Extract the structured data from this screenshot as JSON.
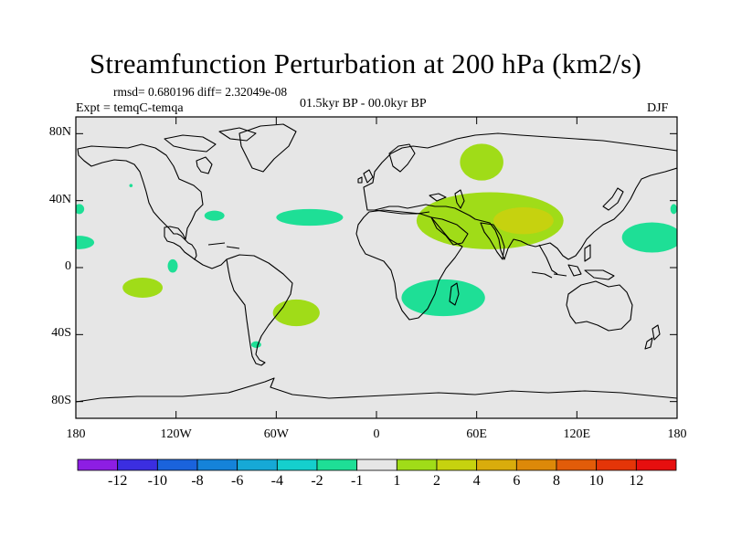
{
  "title": "Streamfunction Perturbation at 200 hPa (km2/s)",
  "stats": "rmsd= 0.680196 diff= 2.32049e-08",
  "period": "01.5kyr BP - 00.0kyr BP",
  "experiment": "Expt = temqC-temqa",
  "season": "DJF",
  "map": {
    "projection": "cylindrical equidistant",
    "lon_range": [
      -180,
      180
    ],
    "lat_range": [
      -90,
      90
    ],
    "background_color": "#e6e6e6",
    "y_ticks": [
      {
        "label": "80N",
        "lat": 80
      },
      {
        "label": "40N",
        "lat": 40
      },
      {
        "label": "0",
        "lat": 0
      },
      {
        "label": "40S",
        "lat": -40
      },
      {
        "label": "80S",
        "lat": -80
      }
    ],
    "x_ticks": [
      {
        "label": "180",
        "lon": -180
      },
      {
        "label": "120W",
        "lon": -120
      },
      {
        "label": "60W",
        "lon": -60
      },
      {
        "label": "0",
        "lon": 0
      },
      {
        "label": "60E",
        "lon": 60
      },
      {
        "label": "120E",
        "lon": 120
      },
      {
        "label": "180",
        "lon": 180
      }
    ],
    "anomalies": [
      {
        "name": "central-asia-positive",
        "lon": 63,
        "lat": 63,
        "rlon": 13,
        "rlat": 11,
        "level": 1
      },
      {
        "name": "south-asia-positive",
        "lon": 68,
        "lat": 28,
        "rlon": 44,
        "rlat": 17,
        "level": 1
      },
      {
        "name": "tibet-core-positive",
        "lon": 88,
        "lat": 28,
        "rlon": 18,
        "rlat": 8,
        "level": 2
      },
      {
        "name": "south-atlantic-positive",
        "lon": -48,
        "lat": -27,
        "rlon": 14,
        "rlat": 8,
        "level": 1
      },
      {
        "name": "south-pacific-positive",
        "lon": -140,
        "lat": -12,
        "rlon": 12,
        "rlat": 6,
        "level": 1
      },
      {
        "name": "north-atlantic-negative",
        "lon": -40,
        "lat": 30,
        "rlon": 20,
        "rlat": 5,
        "level": -1
      },
      {
        "name": "indian-ocean-negative",
        "lon": 40,
        "lat": -18,
        "rlon": 25,
        "rlat": 11,
        "level": -1
      },
      {
        "name": "west-pacific-negative",
        "lon": 165,
        "lat": 18,
        "rlon": 18,
        "rlat": 9,
        "level": -1
      },
      {
        "name": "east-pacific-negative",
        "lon": -178,
        "lat": 15,
        "rlon": 9,
        "rlat": 4,
        "level": -1
      },
      {
        "name": "gulf-of-mexico-negative",
        "lon": -97,
        "lat": 31,
        "rlon": 6,
        "rlat": 3,
        "level": -1
      },
      {
        "name": "equatorial-pacific-negative",
        "lon": -122,
        "lat": 1,
        "rlon": 3,
        "rlat": 4,
        "level": -1
      },
      {
        "name": "southwest-atlantic-negative",
        "lon": -72,
        "lat": -46,
        "rlon": 3,
        "rlat": 2,
        "level": -1
      },
      {
        "name": "dateline-north-negative",
        "lon": -178,
        "lat": 35,
        "rlon": 3,
        "rlat": 3,
        "level": -1
      },
      {
        "name": "dateline-east-negative",
        "lon": 178,
        "lat": 35,
        "rlon": 2,
        "rlat": 3,
        "level": -1
      },
      {
        "name": "north-pacific-negative",
        "lon": -147,
        "lat": 49,
        "rlon": 1,
        "rlat": 1,
        "level": -1
      }
    ]
  },
  "colorbar": {
    "labels": [
      "-12",
      "-10",
      "-8",
      "-6",
      "-4",
      "-2",
      "-1",
      "1",
      "2",
      "4",
      "6",
      "8",
      "10",
      "12"
    ],
    "colors": [
      "#8d1ee3",
      "#3b2ee0",
      "#1a63dc",
      "#1583d9",
      "#16a9d6",
      "#15cfcd",
      "#1edf96",
      "#e6e6e6",
      "#a0dc18",
      "#c6d20f",
      "#d9ac0c",
      "#dd8909",
      "#e25c09",
      "#e43508",
      "#e60f0f"
    ]
  }
}
